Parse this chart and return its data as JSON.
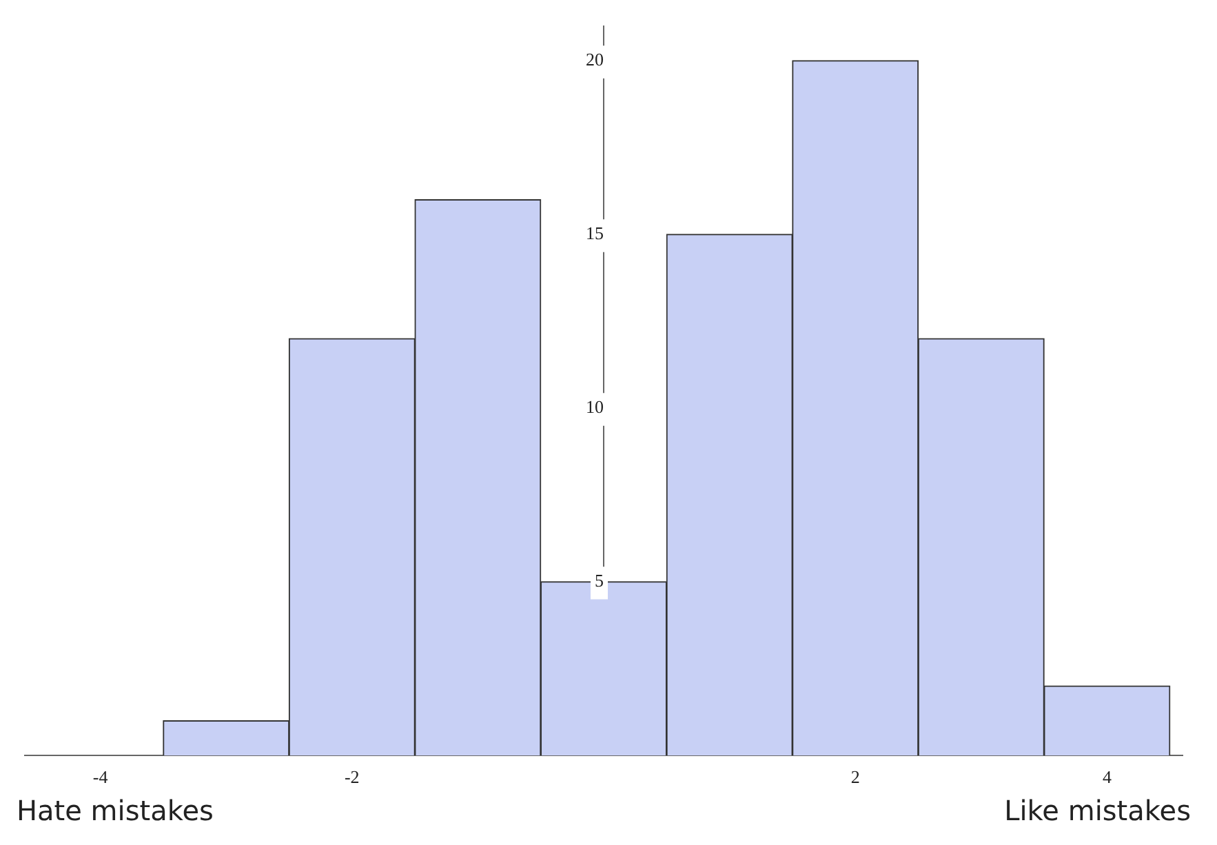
{
  "chart_data": {
    "type": "histogram",
    "bins": [
      -3.5,
      -2.5,
      -1.5,
      -0.5,
      0.5,
      1.5,
      2.5,
      3.5,
      4.5
    ],
    "values": [
      1,
      12,
      16,
      5,
      15,
      20,
      12,
      2
    ],
    "color": "#c8d0f5",
    "xlim": [
      -4.6,
      4.6
    ],
    "ylim": [
      0,
      21
    ],
    "xticks": [
      -4,
      -2,
      2,
      4
    ],
    "yticks": [
      5,
      10,
      15,
      20
    ],
    "grid": false,
    "legend": false,
    "annotations": [
      "Hate mistakes",
      "Like mistakes"
    ]
  }
}
